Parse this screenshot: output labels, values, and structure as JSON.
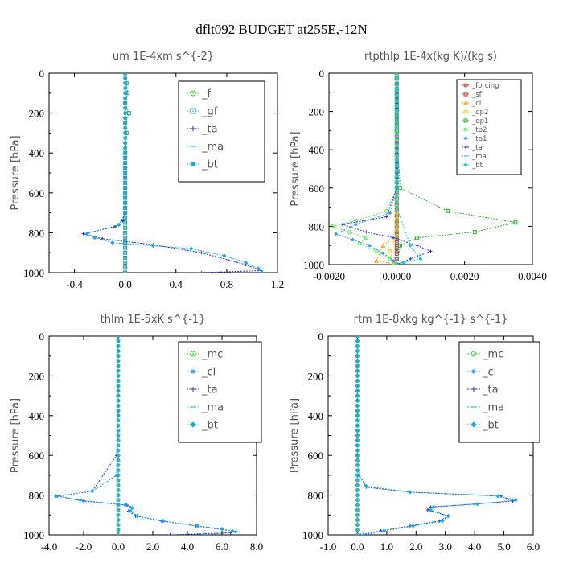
{
  "figure_title": "dflt092  BUDGET at255E,-12N",
  "chart_data": [
    {
      "type": "line",
      "title": "um   1E-4xm s^{-2}",
      "ylabel": "Pressure [hPa]",
      "xlabel": "",
      "xlim": [
        -0.6,
        1.2
      ],
      "ylim": [
        1000,
        0
      ],
      "xticks": [
        -0.4,
        0.0,
        0.4,
        0.8,
        1.2
      ],
      "xticklabels": [
        "-0.4",
        "0.0",
        "0.4",
        "0.8",
        "1.2"
      ],
      "yticks": [
        0,
        200,
        400,
        600,
        800,
        1000
      ],
      "yticklabels": [
        "0",
        "200",
        "400",
        "600",
        "800",
        "1000"
      ],
      "legend": [
        "_f",
        "_gf",
        "_ta",
        "_ma",
        "_bt"
      ],
      "series": [
        {
          "name": "_f",
          "color": "#33cc33",
          "marker": "circle",
          "x": [
            0,
            0,
            0,
            0,
            0,
            0,
            0,
            0,
            0,
            0,
            0,
            0,
            0,
            0,
            0
          ],
          "y": [
            0,
            50,
            100,
            150,
            200,
            300,
            400,
            500,
            600,
            700,
            750,
            800,
            850,
            900,
            1000
          ]
        },
        {
          "name": "_gf",
          "color": "#339999",
          "marker": "square",
          "x": [
            0,
            0.01,
            0.02,
            0.0,
            0.03,
            0.0,
            0.01,
            0.0,
            0.0,
            0.0,
            0.0,
            0.0,
            0.0,
            0.0,
            0.0
          ],
          "y": [
            0,
            50,
            100,
            150,
            200,
            250,
            300,
            400,
            500,
            600,
            700,
            750,
            800,
            900,
            1000
          ]
        },
        {
          "name": "_ta",
          "color": "#2222dd",
          "marker": "plus",
          "x": [
            0,
            0,
            0,
            0,
            0,
            0,
            0,
            -0.02,
            -0.08,
            -0.33,
            -0.18,
            0.22,
            0.6,
            0.95,
            1.07,
            0.6
          ],
          "y": [
            0,
            100,
            200,
            300,
            400,
            600,
            700,
            740,
            770,
            805,
            830,
            860,
            900,
            960,
            990,
            1000
          ]
        },
        {
          "name": "_ma",
          "color": "#33bbdd",
          "marker": "dash",
          "x": [
            0,
            0,
            0,
            0,
            0,
            0,
            0,
            0,
            0
          ],
          "y": [
            0,
            100,
            200,
            300,
            400,
            600,
            800,
            900,
            1000
          ]
        },
        {
          "name": "_bt",
          "color": "#11aaee",
          "marker": "diamond",
          "x": [
            0,
            0,
            0,
            0,
            0,
            0,
            0,
            -0.05,
            -0.3,
            -0.24,
            -0.1,
            0.22,
            0.52,
            0.78,
            0.95,
            1.05,
            1.08
          ],
          "y": [
            0,
            100,
            200,
            300,
            400,
            600,
            700,
            760,
            805,
            825,
            850,
            865,
            880,
            915,
            950,
            980,
            1000
          ]
        }
      ]
    },
    {
      "type": "line",
      "title": "rtpthlp   1E-4x(kg K)/(kg s)",
      "ylabel": "Pressure [hPa]",
      "xlabel": "",
      "xlim": [
        -0.002,
        0.004
      ],
      "ylim": [
        1000,
        0
      ],
      "xticks": [
        -0.002,
        0.0,
        0.002,
        0.004
      ],
      "xticklabels": [
        "-0.0020",
        "0.0000",
        "0.0020",
        "0.0040"
      ],
      "yticks": [
        0,
        200,
        400,
        600,
        800,
        1000
      ],
      "yticklabels": [
        "0",
        "200",
        "400",
        "600",
        "800",
        "1000"
      ],
      "legend": [
        "_forcing",
        "_sf",
        "_cl",
        "_dp2",
        "_dp1",
        "_tp2",
        "_tp1",
        "_ta",
        "_ma",
        "_bt"
      ],
      "series": [
        {
          "name": "_forcing",
          "color": "#dd2222",
          "marker": "circle",
          "x": [
            0,
            0,
            0,
            0,
            0,
            0,
            0,
            0
          ],
          "y": [
            0,
            150,
            300,
            450,
            600,
            750,
            900,
            1000
          ]
        },
        {
          "name": "_sf",
          "color": "#cc3333",
          "marker": "square",
          "x": [
            0,
            0,
            0,
            0,
            0,
            0
          ],
          "y": [
            0,
            200,
            400,
            600,
            800,
            1000
          ]
        },
        {
          "name": "_cl",
          "color": "#ee9900",
          "marker": "triangle",
          "x": [
            0,
            0,
            0,
            0,
            0,
            -0.0004,
            -0.0006,
            -0.0001,
            0
          ],
          "y": [
            0,
            200,
            400,
            600,
            850,
            900,
            980,
            995,
            1000
          ]
        },
        {
          "name": "_dp2",
          "color": "#dddd00",
          "marker": "circle",
          "x": [
            0,
            0,
            0,
            0,
            0,
            -0.0002,
            -0.0001,
            0
          ],
          "y": [
            0,
            200,
            400,
            700,
            850,
            930,
            990,
            1000
          ]
        },
        {
          "name": "_dp1",
          "color": "#33aa33",
          "marker": "square",
          "x": [
            0,
            0,
            0.0001,
            0.0015,
            0.0035,
            0.0023,
            0.0006,
            0.0001,
            0
          ],
          "y": [
            0,
            300,
            600,
            720,
            780,
            830,
            860,
            900,
            1000
          ]
        },
        {
          "name": "_tp2",
          "color": "#55ee55",
          "marker": "circle",
          "x": [
            0,
            0,
            -0.0003,
            -0.0012,
            -0.0019,
            -0.0014,
            -0.0009,
            -0.0011,
            -0.0006,
            -0.0002,
            0
          ],
          "y": [
            0,
            600,
            720,
            770,
            800,
            830,
            860,
            890,
            930,
            970,
            1000
          ]
        },
        {
          "name": "_tp1",
          "color": "#3399ff",
          "marker": "star",
          "x": [
            0,
            0,
            -0.0002,
            -0.0012,
            -0.0018,
            -0.0013,
            -0.0008,
            -0.0004,
            -0.0001,
            0
          ],
          "y": [
            0,
            600,
            730,
            790,
            840,
            870,
            900,
            940,
            980,
            1000
          ]
        },
        {
          "name": "_ta",
          "color": "#2233dd",
          "marker": "plus",
          "x": [
            0,
            0,
            -0.0003,
            -0.0016,
            -0.0009,
            -0.0001,
            0.0006,
            0.001,
            0.0004,
            0
          ],
          "y": [
            0,
            600,
            750,
            790,
            830,
            860,
            900,
            930,
            970,
            1000
          ]
        },
        {
          "name": "_ma",
          "color": "#33bbdd",
          "marker": "dash",
          "x": [
            0,
            0,
            0,
            0,
            0,
            0
          ],
          "y": [
            0,
            200,
            400,
            600,
            800,
            1000
          ]
        },
        {
          "name": "_bt",
          "color": "#11ccdd",
          "marker": "diamond",
          "x": [
            0,
            0,
            0,
            0,
            0.0004,
            0.0007,
            0.0002,
            0
          ],
          "y": [
            0,
            200,
            400,
            700,
            900,
            970,
            990,
            1000
          ]
        }
      ]
    },
    {
      "type": "line",
      "title": "thlm   1E-5xK s^{-1}",
      "ylabel": "Pressure [hPa]",
      "xlabel": "",
      "xlim": [
        -4.0,
        8.0
      ],
      "ylim": [
        1000,
        0
      ],
      "xticks": [
        -4.0,
        -2.0,
        0.0,
        2.0,
        4.0,
        6.0,
        8.0
      ],
      "xticklabels": [
        "-4.0",
        "-2.0",
        "0.0",
        "2.0",
        "4.0",
        "6.0",
        "8.0"
      ],
      "yticks": [
        0,
        200,
        400,
        600,
        800,
        1000
      ],
      "yticklabels": [
        "0",
        "200",
        "400",
        "600",
        "800",
        "1000"
      ],
      "legend": [
        "_mc",
        "_cl",
        "_ta",
        "_ma",
        "_bt"
      ],
      "series": [
        {
          "name": "_mc",
          "color": "#33cc33",
          "marker": "circle",
          "x": [
            0,
            0,
            0,
            0,
            0,
            0,
            0,
            0,
            0,
            0,
            0
          ],
          "y": [
            0,
            100,
            200,
            300,
            400,
            500,
            600,
            700,
            800,
            900,
            1000
          ]
        },
        {
          "name": "_cl",
          "color": "#3399ff",
          "marker": "star",
          "x": [
            0,
            0,
            0,
            0,
            0,
            0,
            0
          ],
          "y": [
            0,
            200,
            400,
            600,
            800,
            900,
            1000
          ]
        },
        {
          "name": "_ta",
          "color": "#2233dd",
          "marker": "plus",
          "x": [
            0,
            0,
            0,
            0,
            0,
            -0.1,
            -1.5,
            -3.5,
            -2.0,
            0.5,
            0.9,
            0.6,
            1.0,
            2.5,
            4.5,
            6.6,
            6.5,
            3.0
          ],
          "y": [
            0,
            100,
            200,
            300,
            400,
            600,
            780,
            805,
            830,
            850,
            865,
            880,
            905,
            930,
            955,
            980,
            990,
            1000
          ]
        },
        {
          "name": "_ma",
          "color": "#33bbdd",
          "marker": "dash",
          "x": [
            0,
            0,
            0,
            0,
            0,
            0
          ],
          "y": [
            0,
            200,
            400,
            600,
            800,
            1000
          ]
        },
        {
          "name": "_bt",
          "color": "#11aaee",
          "marker": "diamond",
          "x": [
            0,
            0,
            0,
            0,
            0,
            -0.1,
            -1.5,
            -3.6,
            -2.2,
            0.4,
            0.8,
            0.7,
            1.1,
            2.6,
            4.6,
            6.0,
            6.8,
            5.0
          ],
          "y": [
            0,
            100,
            200,
            300,
            400,
            700,
            780,
            805,
            825,
            850,
            865,
            880,
            905,
            930,
            955,
            970,
            985,
            1000
          ]
        }
      ]
    },
    {
      "type": "line",
      "title": "rtm   1E-8xkg kg^{-1} s^{-1}",
      "ylabel": "Pressure [hPa]",
      "xlabel": "",
      "xlim": [
        -1.0,
        6.0
      ],
      "ylim": [
        1000,
        0
      ],
      "xticks": [
        -1.0,
        0.0,
        1.0,
        2.0,
        3.0,
        4.0,
        5.0,
        6.0
      ],
      "xticklabels": [
        "-1.0",
        "0.0",
        "1.0",
        "2.0",
        "3.0",
        "4.0",
        "5.0",
        "6.0"
      ],
      "yticks": [
        0,
        200,
        400,
        600,
        800,
        1000
      ],
      "yticklabels": [
        "0",
        "200",
        "400",
        "600",
        "800",
        "1000"
      ],
      "legend": [
        "_mc",
        "_cl",
        "_ta",
        "_ma",
        "_bt"
      ],
      "series": [
        {
          "name": "_mc",
          "color": "#33cc33",
          "marker": "circle",
          "x": [
            0,
            0,
            0,
            0,
            0,
            0,
            0,
            0,
            0,
            0,
            0
          ],
          "y": [
            0,
            100,
            200,
            300,
            400,
            500,
            600,
            700,
            800,
            900,
            1000
          ]
        },
        {
          "name": "_cl",
          "color": "#3399ff",
          "marker": "star",
          "x": [
            0,
            0,
            0,
            0,
            0,
            0,
            0
          ],
          "y": [
            0,
            200,
            400,
            600,
            800,
            900,
            1000
          ]
        },
        {
          "name": "_ta",
          "color": "#2233dd",
          "marker": "plus",
          "x": [
            0,
            0,
            0,
            0,
            0.05,
            0.3,
            1.8,
            4.9,
            5.3,
            4.0,
            2.5,
            2.4,
            3.1,
            2.8,
            1.8,
            0.8,
            0.1
          ],
          "y": [
            0,
            200,
            400,
            600,
            700,
            760,
            785,
            805,
            830,
            845,
            860,
            875,
            905,
            930,
            955,
            980,
            1000
          ]
        },
        {
          "name": "_ma",
          "color": "#33bbdd",
          "marker": "dash",
          "x": [
            0,
            0,
            0,
            0,
            0,
            0
          ],
          "y": [
            0,
            200,
            400,
            600,
            800,
            1000
          ]
        },
        {
          "name": "_bt",
          "color": "#11aaee",
          "marker": "diamond",
          "x": [
            0,
            0,
            0,
            0,
            0.05,
            0.3,
            1.8,
            4.8,
            5.4,
            4.1,
            2.6,
            2.5,
            3.1,
            2.9,
            1.9,
            0.9,
            0.2
          ],
          "y": [
            0,
            200,
            400,
            600,
            700,
            755,
            785,
            805,
            825,
            845,
            860,
            875,
            905,
            930,
            955,
            980,
            1000
          ]
        }
      ]
    }
  ]
}
